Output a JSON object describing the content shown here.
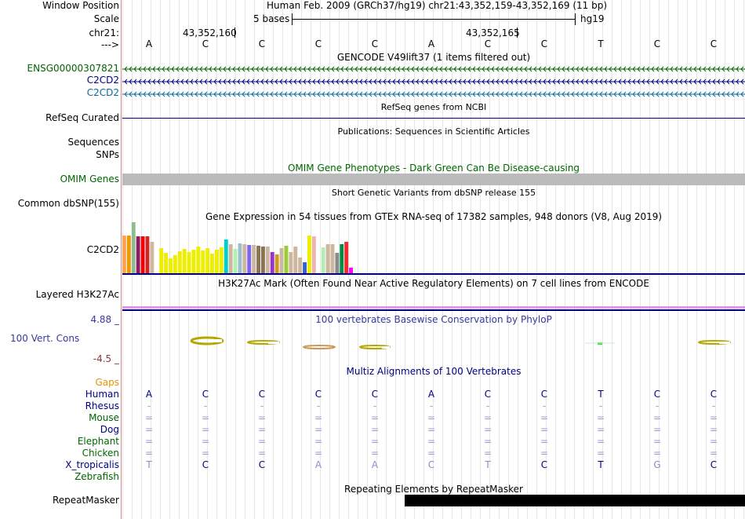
{
  "header": {
    "window_position_label": "Window Position",
    "window_position_value": "Human Feb. 2009 (GRCh37/hg19)   chr21:43,352,159-43,352,169 (11 bp)",
    "scale_label": "Scale",
    "scale_text": "5 bases",
    "scale_assembly": "hg19",
    "chrom_label": "chr21:",
    "coord_1": "43,352,160",
    "coord_2": "43,352,165",
    "strand_label": "--->"
  },
  "sequence": [
    "A",
    "C",
    "C",
    "C",
    "C",
    "A",
    "C",
    "C",
    "T",
    "C",
    "C"
  ],
  "gencode": {
    "title": "GENCODE V49lift37 (1 items filtered out)",
    "items": [
      {
        "label": "ENSG00000307821",
        "color": "#006600"
      },
      {
        "label": "C2CD2",
        "color": "#000080"
      },
      {
        "label": "C2CD2",
        "color": "#0a6b9a"
      }
    ]
  },
  "refseq": {
    "title": "RefSeq genes from NCBI",
    "label": "RefSeq Curated",
    "color": "#000080"
  },
  "publications": {
    "title": "Publications: Sequences in Scientific Articles",
    "label_1": "Sequences",
    "label_2": "SNPs"
  },
  "omim": {
    "title": "OMIM Gene Phenotypes - Dark Green Can Be Disease-causing",
    "label": "OMIM Genes",
    "color": "#006600",
    "bar_color": "#bbbbbb"
  },
  "dbsnp": {
    "title": "Short Genetic Variants from dbSNP release 155",
    "label": "Common dbSNP(155)"
  },
  "gtex": {
    "title": "Gene Expression in 54 tissues from GTEx RNA-seq of 17382 samples, 948 donors (V8, Aug 2019)",
    "label": "C2CD2",
    "tissue_colors": [
      "#ffa54f",
      "#ee9a00",
      "#8fbc8f",
      "#8b1c62",
      "#ee0000",
      "#cd2626",
      "#cdb79e",
      "#ffffff",
      "#eeee00",
      "#eeee00",
      "#eeee00",
      "#eeee00",
      "#eeee00",
      "#eeee00",
      "#eeee00",
      "#eeee00",
      "#eeee00",
      "#eeee00",
      "#eeee00",
      "#eeee00",
      "#eeee00",
      "#eeee00",
      "#00cdcd",
      "#cdb79e",
      "#b4eeb4",
      "#9ac0cd",
      "#cdb79e",
      "#7a67ee",
      "#cdb79e",
      "#8b7355",
      "#8b7355",
      "#cdb79e",
      "#9a32cd",
      "#cd9b1d",
      "#cdb79e",
      "#9acd32",
      "#cdb79e",
      "#cdb79e",
      "#cdb79e",
      "#3a5fcd",
      "#eeee00",
      "#eeb4b4",
      "#ffffff",
      "#b4eeb4",
      "#cdb79e",
      "#cdb79e",
      "#8b8989",
      "#008b45",
      "#ee2c2c",
      "#ff00ff",
      "#ffffff",
      "#ffffff",
      "#ffffff",
      "#ffffff"
    ],
    "tissue_values": [
      48,
      48,
      65,
      47,
      47,
      47,
      40,
      0,
      32,
      26,
      19,
      23,
      28,
      31,
      27,
      30,
      34,
      29,
      32,
      25,
      30,
      33,
      43,
      37,
      31,
      38,
      37,
      36,
      36,
      35,
      34,
      34,
      27,
      24,
      32,
      35,
      27,
      34,
      20,
      14,
      48,
      47,
      0,
      33,
      37,
      37,
      26,
      37,
      40,
      7,
      0,
      0,
      0,
      0
    ]
  },
  "h3k27ac": {
    "title": "H3K27Ac Mark (Often Found Near Active Regulatory Elements) on 7 cell lines from ENCODE",
    "label": "Layered H3K27Ac"
  },
  "conservation": {
    "title": "100 vertebrates Basewise Conservation by PhyloP",
    "label": "100 Vert. Cons",
    "max_label": "4.88 _",
    "min_label": "-4.5 _",
    "label_color": "#3838a0",
    "min_color": "#8b3a3a"
  },
  "multiz": {
    "title": "Multiz Alignments of 100 Vertebrates",
    "gaps_label": "Gaps",
    "gaps_color": "#e69500",
    "species": [
      {
        "name": "Human",
        "color": "#000080",
        "bases": [
          "A",
          "C",
          "C",
          "C",
          "C",
          "A",
          "C",
          "C",
          "T",
          "C",
          "C"
        ]
      },
      {
        "name": "Rhesus",
        "color": "#000080",
        "bases": [
          "-",
          "-",
          "-",
          "-",
          "-",
          "-",
          "-",
          "-",
          "-",
          "-",
          "-"
        ]
      },
      {
        "name": "Mouse",
        "color": "#006600",
        "bases": [
          "=",
          "=",
          "=",
          "=",
          "=",
          "=",
          "=",
          "=",
          "=",
          "=",
          "="
        ]
      },
      {
        "name": "Dog",
        "color": "#000080",
        "bases": [
          "=",
          "=",
          "=",
          "=",
          "=",
          "=",
          "=",
          "=",
          "=",
          "=",
          "="
        ]
      },
      {
        "name": "Elephant",
        "color": "#006600",
        "bases": [
          "=",
          "=",
          "=",
          "=",
          "=",
          "=",
          "=",
          "=",
          "=",
          "=",
          "="
        ]
      },
      {
        "name": "Chicken",
        "color": "#006600",
        "bases": [
          "=",
          "=",
          "=",
          "=",
          "=",
          "=",
          "=",
          "=",
          "=",
          "=",
          "="
        ]
      },
      {
        "name": "X_tropicalis",
        "color": "#000080",
        "bases": [
          "T",
          "C",
          "C",
          "A",
          "A",
          "C",
          "T",
          "C",
          "T",
          "G",
          "C"
        ]
      },
      {
        "name": "Zebrafish",
        "color": "#006600",
        "bases": []
      }
    ]
  },
  "repeatmasker": {
    "title": "Repeating Elements by RepeatMasker",
    "label": "RepeatMasker"
  }
}
